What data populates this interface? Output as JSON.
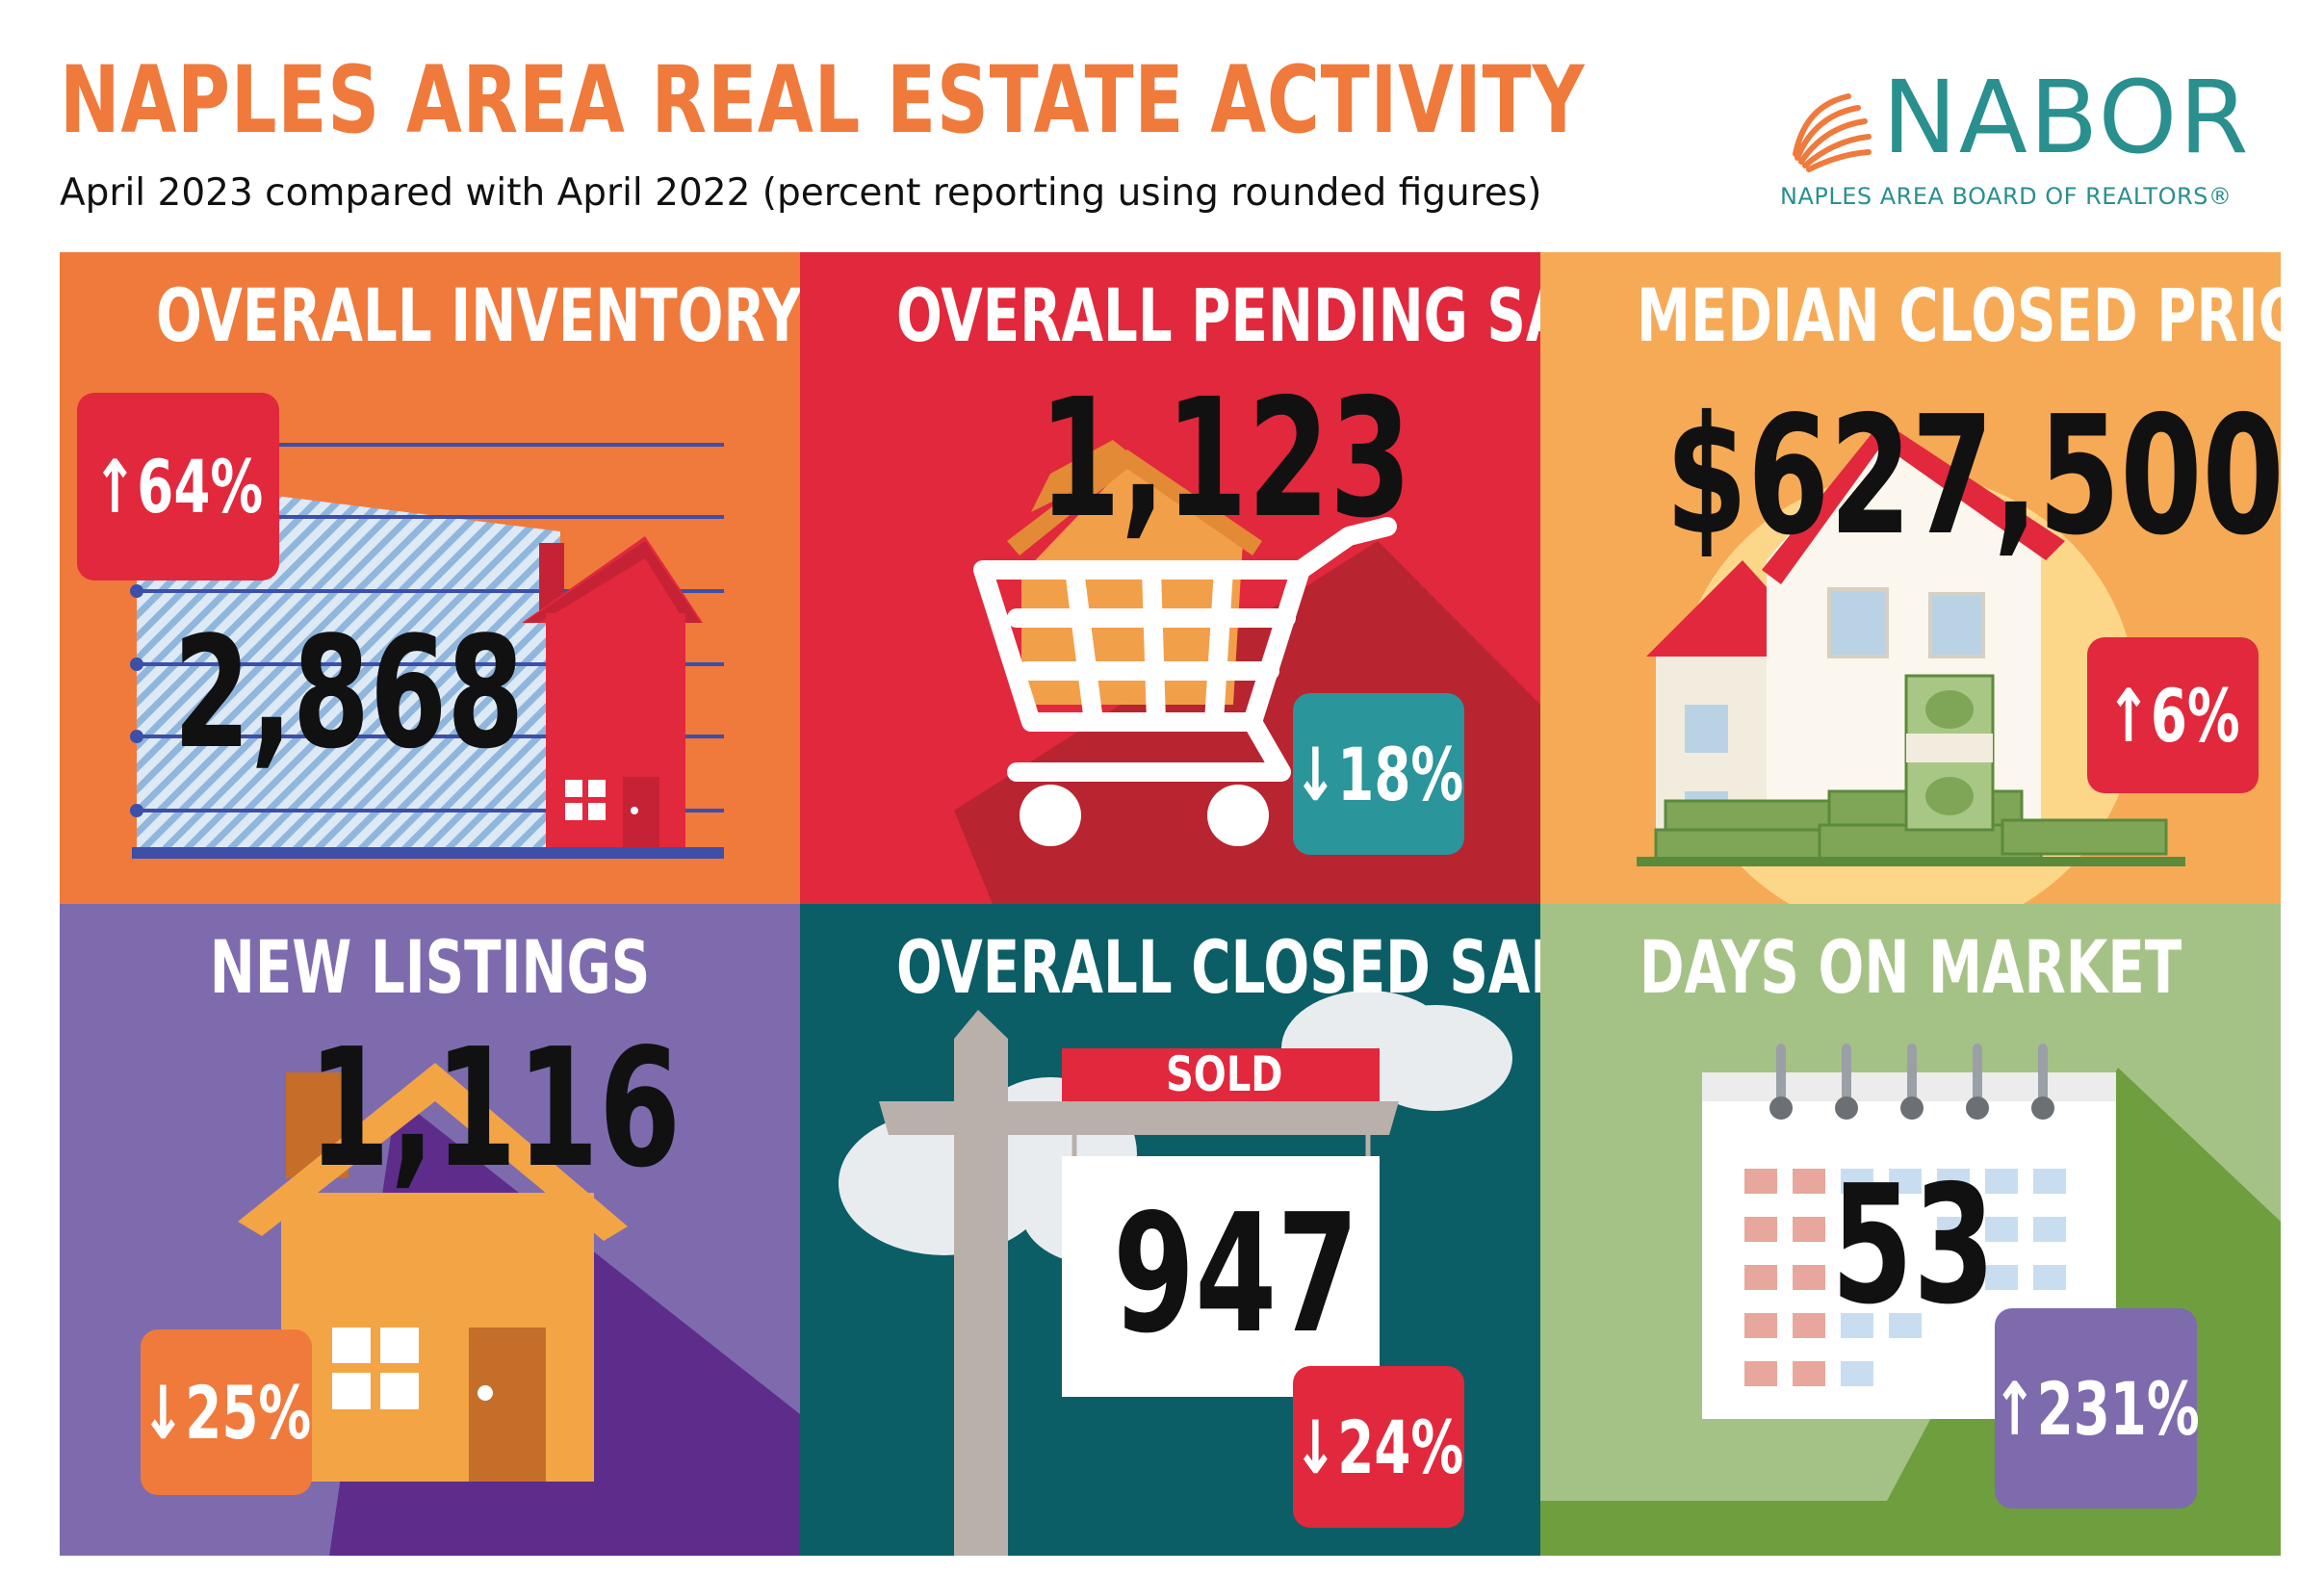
{
  "header": {
    "title": "NAPLES AREA REAL ESTATE ACTIVITY",
    "subtitle": "April 2023 compared with April 2022 (percent reporting using rounded figures)"
  },
  "logo": {
    "name": "NABOR",
    "tagline": "NAPLES AREA BOARD OF REALTORS®"
  },
  "tiles": [
    {
      "title": "OVERALL INVENTORY",
      "value": "2,868",
      "change": "64%",
      "direction": "up",
      "icon": "house-chart-icon",
      "bg": "#ef7a3c",
      "badge_color": "#e2283c"
    },
    {
      "title": "OVERALL PENDING SALES",
      "value": "1,123",
      "change": "18%",
      "direction": "down",
      "icon": "shopping-cart-house-icon",
      "bg": "#e2283c",
      "badge_color": "#2a959b"
    },
    {
      "title": "MEDIAN CLOSED PRICE",
      "value": "$627,500",
      "change": "6%",
      "direction": "up",
      "icon": "house-money-icon",
      "bg": "#f6aa55",
      "badge_color": "#e2283c"
    },
    {
      "title": "NEW LISTINGS",
      "value": "1,116",
      "change": "25%",
      "direction": "down",
      "icon": "house-icon",
      "bg": "#7d6bae",
      "badge_color": "#ef7a3c"
    },
    {
      "title": "OVERALL CLOSED SALES",
      "value": "947",
      "change": "24%",
      "direction": "down",
      "icon": "sold-sign-icon",
      "bg": "#0b5e66",
      "badge_color": "#e2283c",
      "sign_label": "SOLD"
    },
    {
      "title": "DAYS ON MARKET",
      "value": "53",
      "change": "231%",
      "direction": "up",
      "icon": "calendar-icon",
      "bg": "#a4c285",
      "badge_color": "#7d6bae"
    }
  ]
}
